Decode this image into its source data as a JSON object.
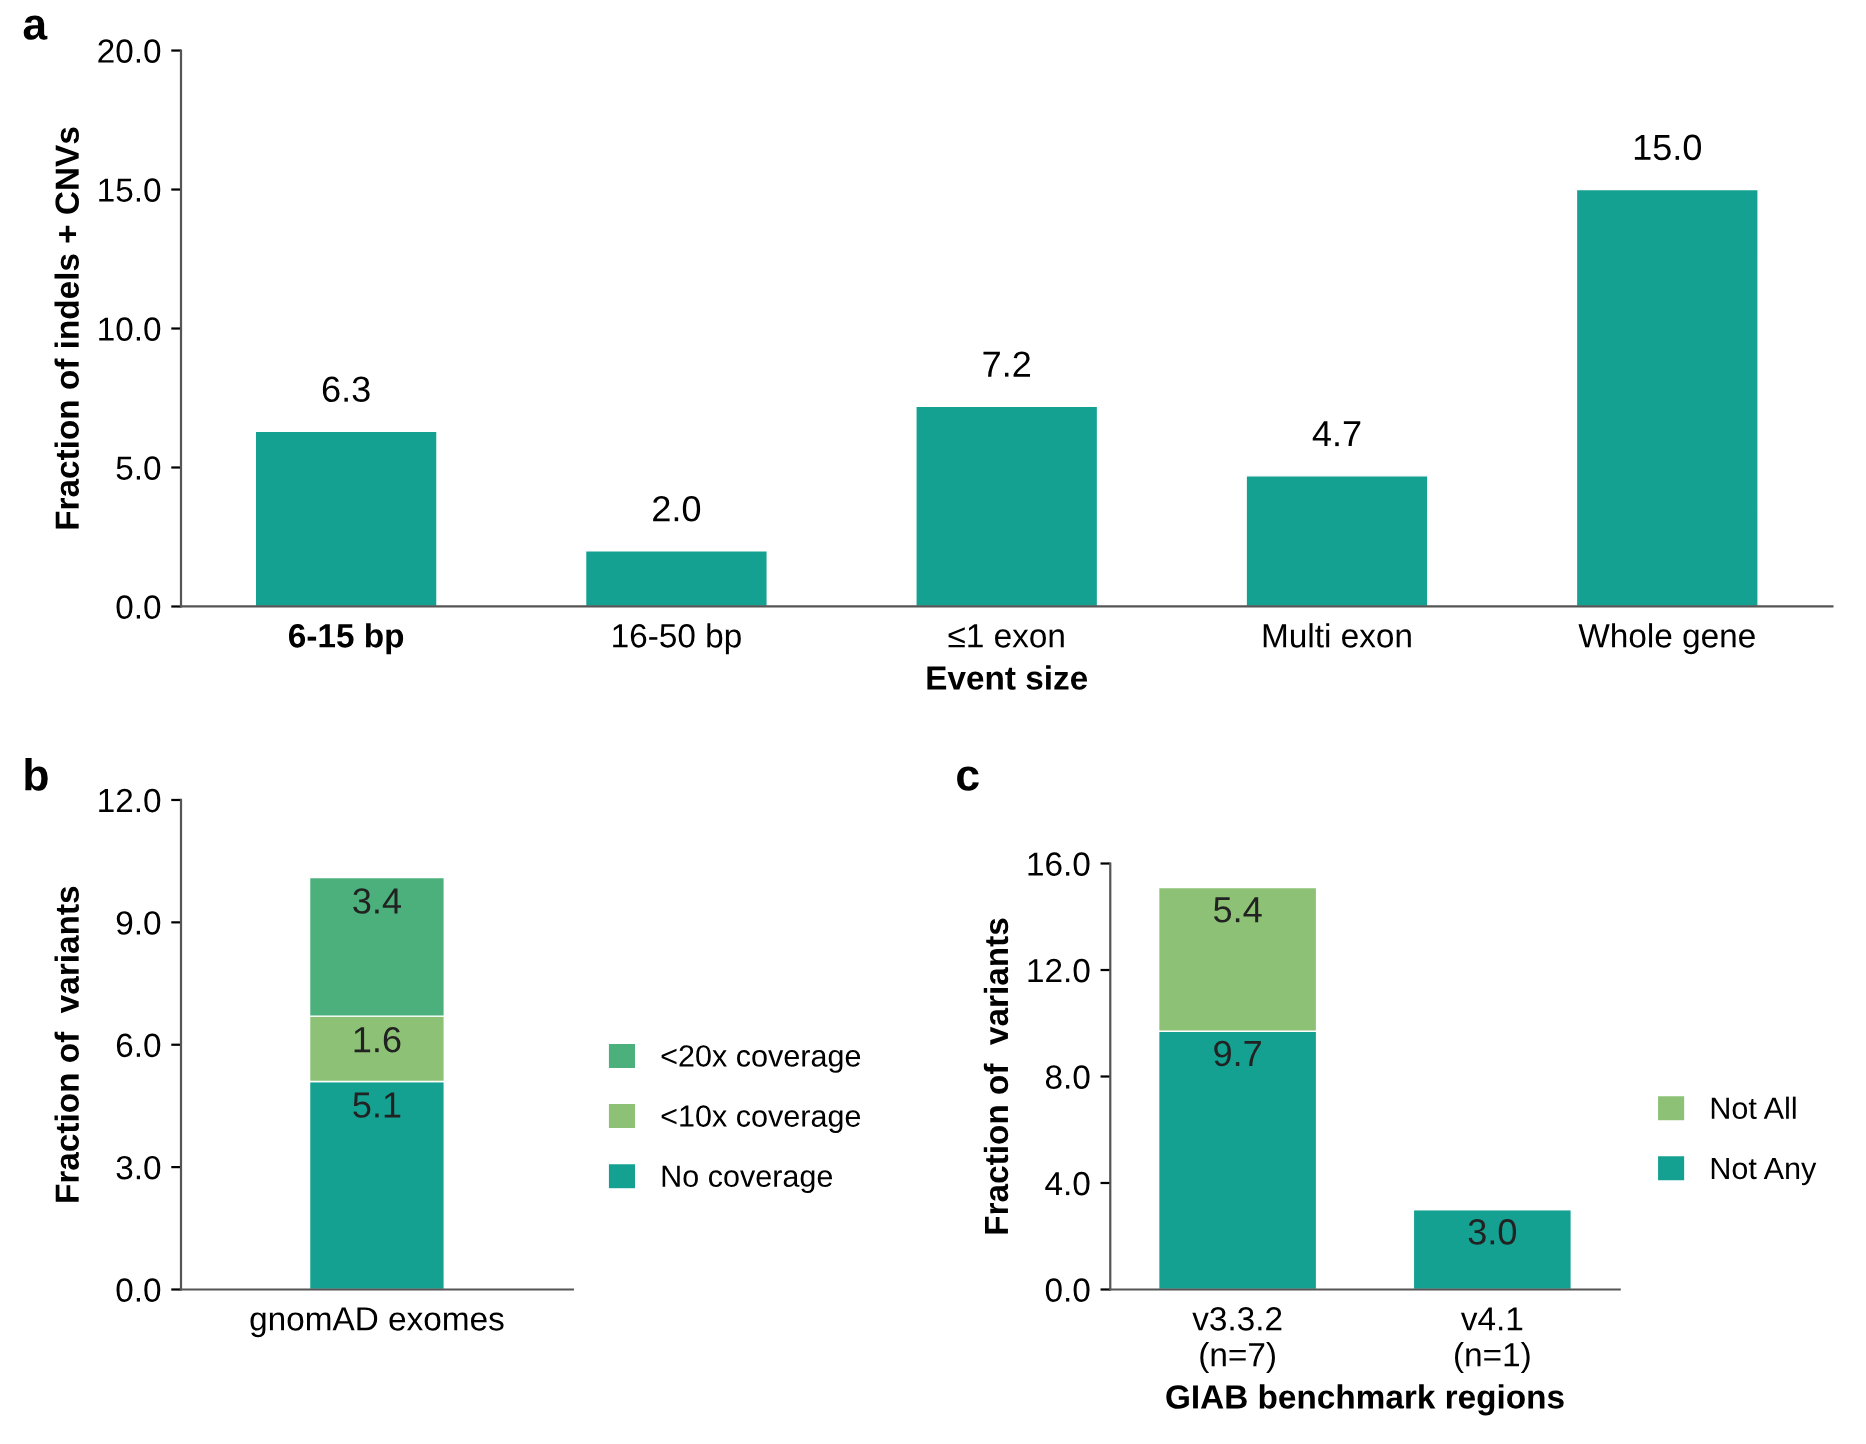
{
  "chart_data": [
    {
      "type": "bar",
      "xlabel": "Event size",
      "ylabel": "Fraction of indels + CNVs",
      "annotations": [
        "a"
      ],
      "categories": [
        "6-15 bp",
        "16-50 bp",
        "≤1 exon",
        "Multi exon",
        "Whole gene"
      ],
      "series": [
        {
          "color": "#14a192",
          "values": [
            6.3,
            2.0,
            7.2,
            4.7,
            15.0
          ],
          "value_labels": [
            "6.3",
            "2.0",
            "7.2",
            "4.7",
            "15.0"
          ]
        }
      ],
      "ylim": [
        0,
        20
      ],
      "yticks": [
        {
          "value": 0,
          "label": "0.0"
        },
        {
          "value": 5,
          "label": "5.0"
        },
        {
          "value": 10,
          "label": "10.0"
        },
        {
          "value": 15,
          "label": "15.0"
        },
        {
          "value": 20,
          "label": "20.0"
        }
      ],
      "grid": false,
      "legend": false
    },
    {
      "type": "bar",
      "stacked": true,
      "ylabel": "Fraction of  variants",
      "annotations": [
        "b"
      ],
      "categories": [
        "gnomAD exomes"
      ],
      "series": [
        {
          "name": "No coverage",
          "color": "#14a192",
          "values": [
            5.1
          ],
          "value_labels": [
            "5.1"
          ]
        },
        {
          "name": "<10x coverage",
          "color": "#8dc276",
          "values": [
            1.6
          ],
          "value_labels": [
            "1.6"
          ]
        },
        {
          "name": "<20x coverage",
          "color": "#4bb07c",
          "values": [
            3.4
          ],
          "value_labels": [
            "3.4"
          ]
        }
      ],
      "ylim": [
        0,
        12
      ],
      "yticks": [
        {
          "value": 0,
          "label": "0.0"
        },
        {
          "value": 3,
          "label": "3.0"
        },
        {
          "value": 6,
          "label": "6.0"
        },
        {
          "value": 9,
          "label": "9.0"
        },
        {
          "value": 12,
          "label": "12.0"
        }
      ],
      "grid": false,
      "legend": "right"
    },
    {
      "type": "bar",
      "stacked": true,
      "xlabel": "GIAB benchmark regions",
      "ylabel": "Fraction of  variants",
      "annotations": [
        "c"
      ],
      "categories": [
        "v3.3.2\n(n=7)",
        "v4.1\n(n=1)"
      ],
      "series": [
        {
          "name": "Not Any",
          "color": "#14a192",
          "values": [
            9.7,
            3.0
          ],
          "value_labels": [
            "9.7",
            "3.0"
          ]
        },
        {
          "name": "Not All",
          "color": "#8dc276",
          "values": [
            5.4,
            null
          ],
          "value_labels": [
            "5.4",
            null
          ]
        }
      ],
      "ylim": [
        0,
        16
      ],
      "yticks": [
        {
          "value": 0,
          "label": "0.0"
        },
        {
          "value": 4,
          "label": "4.0"
        },
        {
          "value": 8,
          "label": "8.0"
        },
        {
          "value": 12,
          "label": "12.0"
        },
        {
          "value": 16,
          "label": "16.0"
        }
      ],
      "grid": false,
      "legend": "right"
    }
  ]
}
